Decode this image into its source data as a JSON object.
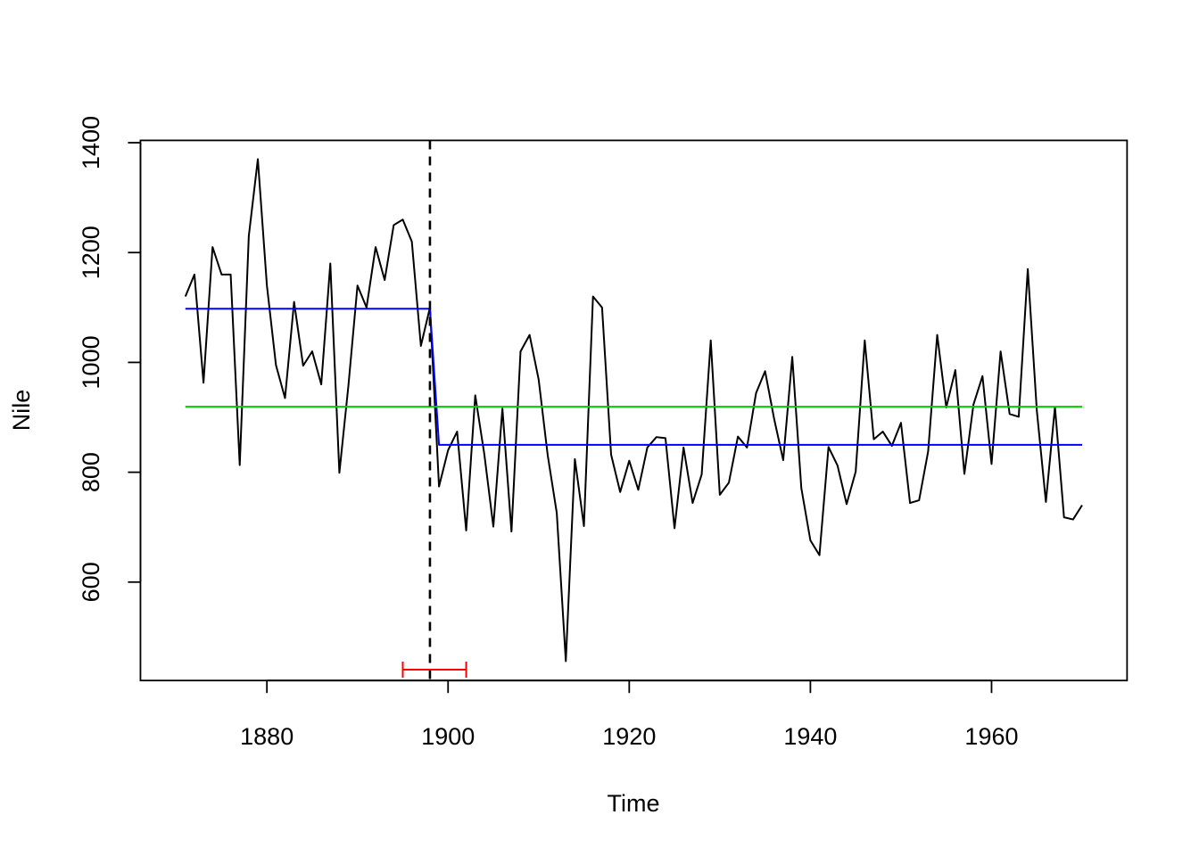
{
  "chart_data": {
    "type": "line",
    "xlabel": "Time",
    "ylabel": "Nile",
    "xlim": [
      1866.04,
      1974.96
    ],
    "ylim": [
      420.76,
      1404.24
    ],
    "x_ticks": [
      1880,
      1900,
      1920,
      1940,
      1960
    ],
    "x_tick_labels": [
      "1880",
      "1900",
      "1920",
      "1940",
      "1960"
    ],
    "y_ticks": [
      600,
      800,
      1000,
      1200,
      1400
    ],
    "y_tick_labels": [
      "600",
      "800",
      "1000",
      "1200",
      "1400"
    ],
    "grid": false,
    "legend": "none",
    "series": [
      {
        "role": "observed",
        "color": "#000000",
        "x_start": 1871,
        "values": [
          1120,
          1160,
          963,
          1210,
          1160,
          1160,
          813,
          1230,
          1370,
          1140,
          995,
          935,
          1110,
          994,
          1020,
          960,
          1180,
          799,
          958,
          1140,
          1100,
          1210,
          1150,
          1250,
          1260,
          1220,
          1030,
          1100,
          774,
          840,
          874,
          694,
          940,
          833,
          701,
          916,
          692,
          1020,
          1050,
          969,
          831,
          726,
          456,
          824,
          702,
          1120,
          1100,
          832,
          764,
          821,
          768,
          845,
          864,
          862,
          698,
          845,
          744,
          796,
          1040,
          759,
          781,
          865,
          845,
          944,
          984,
          897,
          822,
          1010,
          771,
          676,
          649,
          846,
          812,
          742,
          801,
          1040,
          860,
          874,
          848,
          890,
          744,
          749,
          838,
          1050,
          918,
          986,
          797,
          923,
          975,
          815,
          1020,
          906,
          901,
          1170,
          912,
          746,
          919,
          718,
          714,
          740
        ]
      },
      {
        "role": "segment_fit",
        "color": "#0000ff",
        "x": [
          1871,
          1898,
          1899,
          1970
        ],
        "y": [
          1097.75,
          1097.75,
          849.97,
          849.97
        ]
      },
      {
        "role": "overall_mean",
        "color": "#00cd00",
        "x": [
          1871,
          1970
        ],
        "y": [
          919.35,
          919.35
        ]
      }
    ],
    "breakpoint": {
      "x": 1898,
      "color": "#000000",
      "style": "dashed"
    },
    "confidence_interval": {
      "lower": 1895,
      "upper": 1902,
      "color": "#ff0000"
    }
  }
}
